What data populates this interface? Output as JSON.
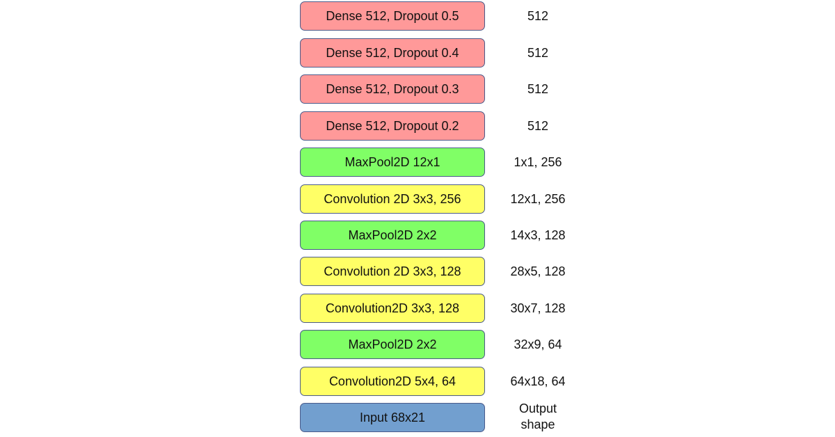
{
  "layers": [
    {
      "label": "Dense 512, Dropout 0.5",
      "shape": "512",
      "kind": "dense",
      "color": "#ff9999"
    },
    {
      "label": "Dense 512, Dropout 0.4",
      "shape": "512",
      "kind": "dense",
      "color": "#ff9999"
    },
    {
      "label": "Dense 512, Dropout 0.3",
      "shape": "512",
      "kind": "dense",
      "color": "#ff9999"
    },
    {
      "label": "Dense 512, Dropout 0.2",
      "shape": "512",
      "kind": "dense",
      "color": "#ff9999"
    },
    {
      "label": "MaxPool2D 12x1",
      "shape": "1x1, 256",
      "kind": "pool",
      "color": "#80ff66"
    },
    {
      "label": "Convolution 2D 3x3, 256",
      "shape": "12x1, 256",
      "kind": "conv",
      "color": "#ffff66"
    },
    {
      "label": "MaxPool2D 2x2",
      "shape": "14x3, 128",
      "kind": "pool",
      "color": "#80ff66"
    },
    {
      "label": "Convolution 2D 3x3, 128",
      "shape": "28x5, 128",
      "kind": "conv",
      "color": "#ffff66"
    },
    {
      "label": "Convolution2D 3x3, 128",
      "shape": "30x7, 128",
      "kind": "conv",
      "color": "#ffff66"
    },
    {
      "label": "MaxPool2D 2x2",
      "shape": "32x9, 64",
      "kind": "pool",
      "color": "#80ff66"
    },
    {
      "label": "Convolution2D 5x4, 64",
      "shape": "64x18, 64",
      "kind": "conv",
      "color": "#ffff66"
    },
    {
      "label": "Input 68x21",
      "shape": "",
      "kind": "input",
      "color": "#729fcf"
    }
  ],
  "header": {
    "line1": "Output",
    "line2": "shape"
  }
}
